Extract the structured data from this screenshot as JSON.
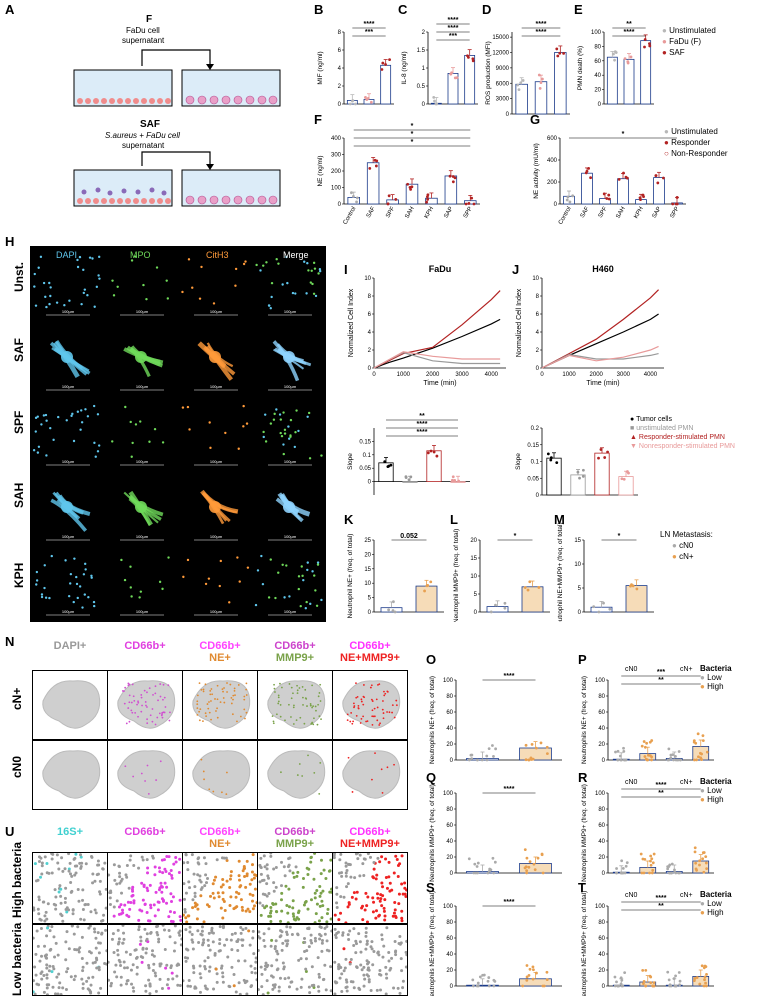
{
  "panel_labels": {
    "A": "A",
    "B": "B",
    "C": "C",
    "D": "D",
    "E": "E",
    "F": "F",
    "G": "G",
    "H": "H",
    "I": "I",
    "J": "J",
    "K": "K",
    "L": "L",
    "M": "M",
    "N": "N",
    "O": "O",
    "P": "P",
    "Q": "Q",
    "R": "R",
    "S": "S",
    "T": "T",
    "U": "U"
  },
  "panelA": {
    "f_title": "F",
    "f_desc1": "FaDu cell",
    "f_desc2": "supernatant",
    "saf_title": "SAF",
    "saf_desc1": "S.aureus + FaDu cell",
    "saf_desc2": "supernatant"
  },
  "legendBE": {
    "items": [
      "Unstimulated",
      "FaDu (F)",
      "SAF"
    ],
    "colors": [
      "#b8b8b8",
      "#e89a9a",
      "#b22222"
    ]
  },
  "legendG": {
    "items": [
      "Unstimulated",
      "Responder",
      "Non-Responder"
    ]
  },
  "panelH": {
    "channels": [
      "DAPI",
      "MPO",
      "CitH3",
      "Merge"
    ],
    "rows": [
      "Unst.",
      "SAF",
      "SPF",
      "SAH",
      "KPH"
    ],
    "scalebar": "100µm"
  },
  "panelIJ": {
    "titleI": "FaDu",
    "titleJ": "H460",
    "ylabel": "Normalized Cell Index",
    "xlabel": "Time (min)",
    "slope": "Slope",
    "legend": [
      "Tumor cells",
      "unstimulated PMN",
      "Responder-stimulated PMN",
      "Nonresponder-stimulated PMN"
    ]
  },
  "panelKLM": {
    "legend_title": "LN Metastasis:",
    "legend": [
      "cN0",
      "cN+"
    ],
    "k_y": "Neutrophil NE+ (freq. of total)",
    "l_y": "Neutrophil MMP9+ (freq. of total)",
    "m_y": "Neutrophil NE+MMP9+ (freq. of total)",
    "k_p": "0.052"
  },
  "panelN": {
    "cols": [
      "DAPI+",
      "CD66b+",
      "CD66b+ NE+",
      "CD66b+ MMP9+",
      "CD66b+ NE+MMP9+"
    ],
    "rows": [
      "cN+",
      "cN0"
    ]
  },
  "panelU": {
    "cols": [
      "16S+",
      "CD66b+",
      "CD66b+ NE+",
      "CD66b+ MMP9+",
      "CD66b+ NE+MMP9+"
    ],
    "rows": [
      "High bacteria",
      "Low bacteria"
    ]
  },
  "panelOT": {
    "o_y": "Neutrophils NE+ (freq. of total)",
    "q_y": "Neutrophils MMP9+ (freq. of total)",
    "s_y": "Neutrophils NE+MMP9+ (freq. of total)",
    "bact_title": "Bacteria",
    "bact": [
      "Low",
      "High"
    ],
    "groups": [
      "cN0",
      "cN+"
    ]
  },
  "chart_data": [
    {
      "panel": "B",
      "type": "bar",
      "ylabel": "MIF (ng/ml)",
      "categories": [
        "Unstimulated",
        "FaDu (F)",
        "SAF"
      ],
      "values": [
        0.4,
        0.5,
        4.3
      ],
      "ylim": [
        0,
        8
      ],
      "yticks": [
        0,
        2,
        4,
        6,
        8
      ],
      "sig": [
        "****",
        "***"
      ]
    },
    {
      "panel": "C",
      "type": "bar",
      "ylabel": "IL-8 (ng/ml)",
      "categories": [
        "Unstimulated",
        "FaDu (F)",
        "SAF"
      ],
      "values": [
        0.02,
        0.85,
        1.35
      ],
      "ylim": [
        0,
        2
      ],
      "yticks": [
        0.0,
        0.5,
        1.0,
        1.5,
        2.0
      ],
      "sig": [
        "****",
        "****",
        "***"
      ]
    },
    {
      "panel": "D",
      "type": "bar",
      "ylabel": "ROS production (MFI)",
      "categories": [
        "Unstimulated",
        "FaDu (F)",
        "SAF"
      ],
      "values": [
        5800,
        6300,
        12000
      ],
      "ylim": [
        0,
        16000
      ],
      "yticks": [
        0,
        3000,
        6000,
        9000,
        12000,
        15000
      ],
      "sig": [
        "****",
        "****"
      ]
    },
    {
      "panel": "E",
      "type": "bar",
      "ylabel": "PMN death (%)",
      "categories": [
        "Unstimulated",
        "FaDu (F)",
        "SAF"
      ],
      "values": [
        65,
        62,
        88
      ],
      "ylim": [
        0,
        100
      ],
      "yticks": [
        0,
        20,
        40,
        60,
        80,
        100
      ],
      "sig": [
        "**",
        "****"
      ]
    },
    {
      "panel": "F",
      "type": "bar",
      "ylabel": "NE (ng/ml)",
      "categories": [
        "Control",
        "SAF",
        "SPF",
        "SAH",
        "KPH",
        "SAP",
        "SPP"
      ],
      "values": [
        40,
        250,
        25,
        120,
        35,
        170,
        20
      ],
      "ylim": [
        0,
        400
      ],
      "yticks": [
        0,
        100,
        200,
        300,
        400
      ],
      "sig": [
        "*",
        "*",
        "*"
      ]
    },
    {
      "panel": "G",
      "type": "bar",
      "ylabel": "NE activity (mU/ml)",
      "categories": [
        "Control",
        "SAF",
        "SPF",
        "SAH",
        "KPH",
        "SAP",
        "SPP"
      ],
      "values": [
        70,
        280,
        50,
        230,
        40,
        240,
        10
      ],
      "ylim": [
        0,
        600
      ],
      "yticks": [
        0,
        200,
        400,
        600
      ],
      "sig": [
        "*"
      ]
    },
    {
      "panel": "I",
      "type": "line",
      "title": "FaDu",
      "xlabel": "Time (min)",
      "ylabel": "Normalized Cell Index",
      "xlim": [
        0,
        4500
      ],
      "ylim": [
        0,
        10
      ],
      "xticks": [
        0,
        1000,
        2000,
        3000,
        4000
      ],
      "yticks": [
        0,
        2,
        4,
        6,
        8,
        10
      ],
      "series": [
        {
          "name": "Tumor cells",
          "x": [
            0,
            500,
            1000,
            2000,
            3000,
            4000,
            4300
          ],
          "y": [
            0,
            0.6,
            1.1,
            2.2,
            3.5,
            4.9,
            5.4
          ]
        },
        {
          "name": "Responder-stimulated PMN",
          "x": [
            0,
            500,
            1000,
            2000,
            3000,
            4000,
            4300
          ],
          "y": [
            0,
            0.8,
            1.6,
            2.3,
            4.8,
            7.6,
            8.6
          ]
        },
        {
          "name": "unstimulated PMN",
          "x": [
            0,
            500,
            1000,
            2000,
            3000,
            4000,
            4300
          ],
          "y": [
            0,
            0.9,
            1.7,
            0.8,
            0.5,
            0.5,
            0.5
          ]
        },
        {
          "name": "Nonresponder-stimulated PMN",
          "x": [
            0,
            500,
            1000,
            2000,
            3000,
            4000,
            4300
          ],
          "y": [
            0,
            0.9,
            1.8,
            1.3,
            1.0,
            1.0,
            1.0
          ]
        }
      ]
    },
    {
      "panel": "J",
      "type": "line",
      "title": "H460",
      "xlabel": "Time (min)",
      "ylabel": "Normalized Cell Index",
      "xlim": [
        0,
        4500
      ],
      "ylim": [
        0,
        10
      ],
      "xticks": [
        0,
        1000,
        2000,
        3000,
        4000
      ],
      "yticks": [
        0,
        2,
        4,
        6,
        8,
        10
      ],
      "series": [
        {
          "name": "Tumor cells",
          "x": [
            0,
            1000,
            2000,
            3000,
            4000,
            4300
          ],
          "y": [
            0,
            1.4,
            2.7,
            4.0,
            5.4,
            6.0
          ]
        },
        {
          "name": "Responder-stimulated PMN",
          "x": [
            0,
            1000,
            2000,
            3000,
            4000,
            4300
          ],
          "y": [
            0,
            1.6,
            3.2,
            5.4,
            7.8,
            8.7
          ]
        },
        {
          "name": "unstimulated PMN",
          "x": [
            0,
            1000,
            2000,
            3000,
            4000,
            4300
          ],
          "y": [
            0,
            1.5,
            1.0,
            1.0,
            1.4,
            1.6
          ]
        },
        {
          "name": "Nonresponder-stimulated PMN",
          "x": [
            0,
            1000,
            2000,
            3000,
            4000,
            4300
          ],
          "y": [
            0,
            1.4,
            0.8,
            1.2,
            2.0,
            2.4
          ]
        }
      ]
    },
    {
      "panel": "I-slope",
      "type": "bar",
      "ylabel": "Slope",
      "categories": [
        "Tumor cells",
        "unstimulated PMN",
        "Responder-stimulated PMN",
        "Nonresponder-stimulated PMN"
      ],
      "values": [
        0.07,
        0.0,
        0.115,
        0.0
      ],
      "ylim": [
        -0.05,
        0.2
      ],
      "yticks": [
        0.0,
        0.05,
        0.1,
        0.15
      ],
      "sig": [
        "**",
        "****",
        "****"
      ]
    },
    {
      "panel": "J-slope",
      "type": "bar",
      "ylabel": "Slope",
      "categories": [
        "Tumor cells",
        "unstimulated PMN",
        "Responder-stimulated PMN",
        "Nonresponder-stimulated PMN"
      ],
      "values": [
        0.11,
        0.06,
        0.125,
        0.055
      ],
      "ylim": [
        0,
        0.2
      ],
      "yticks": [
        0.0,
        0.05,
        0.1,
        0.15,
        0.2
      ],
      "sig": []
    },
    {
      "panel": "K",
      "type": "bar",
      "ylabel": "Neutrophil NE+ (freq. of total)",
      "categories": [
        "cN0",
        "cN+"
      ],
      "values": [
        1.5,
        9
      ],
      "ylim": [
        0,
        25
      ],
      "yticks": [
        0,
        5,
        10,
        15,
        20,
        25
      ],
      "sig": [
        "0.052"
      ]
    },
    {
      "panel": "L",
      "type": "bar",
      "ylabel": "Neutrophil MMP9+ (freq. of total)",
      "categories": [
        "cN0",
        "cN+"
      ],
      "values": [
        1.5,
        7
      ],
      "ylim": [
        0,
        20
      ],
      "yticks": [
        0,
        5,
        10,
        15,
        20
      ],
      "sig": [
        "*"
      ]
    },
    {
      "panel": "M",
      "type": "bar",
      "ylabel": "Neutrophil NE+MMP9+ (freq. of total)",
      "categories": [
        "cN0",
        "cN+"
      ],
      "values": [
        1,
        5.5
      ],
      "ylim": [
        0,
        15
      ],
      "yticks": [
        0,
        5,
        10,
        15
      ],
      "sig": [
        "*"
      ]
    },
    {
      "panel": "O",
      "type": "bar",
      "ylabel": "Neutrophils NE+ (freq. of total)",
      "categories": [
        "Low",
        "High"
      ],
      "values": [
        2,
        15
      ],
      "ylim": [
        0,
        100
      ],
      "yticks": [
        0,
        20,
        40,
        60,
        80,
        100
      ],
      "sig": [
        "****"
      ]
    },
    {
      "panel": "P",
      "type": "bar",
      "ylabel": "Neutrophils NE+ (freq. of total)",
      "categories": [
        "cN0 Low",
        "cN0 High",
        "cN+ Low",
        "cN+ High"
      ],
      "values": [
        1,
        8,
        2,
        17
      ],
      "ylim": [
        0,
        100
      ],
      "yticks": [
        0,
        20,
        40,
        60,
        80,
        100
      ],
      "sig": [
        "***",
        "**"
      ]
    },
    {
      "panel": "Q",
      "type": "bar",
      "ylabel": "Neutrophils MMP9+ (freq. of total)",
      "categories": [
        "Low",
        "High"
      ],
      "values": [
        2,
        12
      ],
      "ylim": [
        0,
        100
      ],
      "yticks": [
        0,
        20,
        40,
        60,
        80,
        100
      ],
      "sig": [
        "****"
      ]
    },
    {
      "panel": "R",
      "type": "bar",
      "ylabel": "Neutrophils MMP9+ (freq. of total)",
      "categories": [
        "cN0 Low",
        "cN0 High",
        "cN+ Low",
        "cN+ High"
      ],
      "values": [
        1,
        7,
        2,
        15
      ],
      "ylim": [
        0,
        100
      ],
      "yticks": [
        0,
        20,
        40,
        60,
        80,
        100
      ],
      "sig": [
        "****",
        "**"
      ]
    },
    {
      "panel": "S",
      "type": "bar",
      "ylabel": "Neutrophils NE+MMP9+ (freq. of total)",
      "categories": [
        "Low",
        "High"
      ],
      "values": [
        1,
        9
      ],
      "ylim": [
        0,
        100
      ],
      "yticks": [
        0,
        20,
        40,
        60,
        80,
        100
      ],
      "sig": [
        "****"
      ]
    },
    {
      "panel": "T",
      "type": "bar",
      "ylabel": "Neutrophils NE+MMP9+ (freq. of total)",
      "categories": [
        "cN0 Low",
        "cN0 High",
        "cN+ Low",
        "cN+ High"
      ],
      "values": [
        1,
        5,
        1,
        12
      ],
      "ylim": [
        0,
        100
      ],
      "yticks": [
        0,
        20,
        40,
        60,
        80,
        100
      ],
      "sig": [
        "****",
        "**"
      ]
    }
  ]
}
